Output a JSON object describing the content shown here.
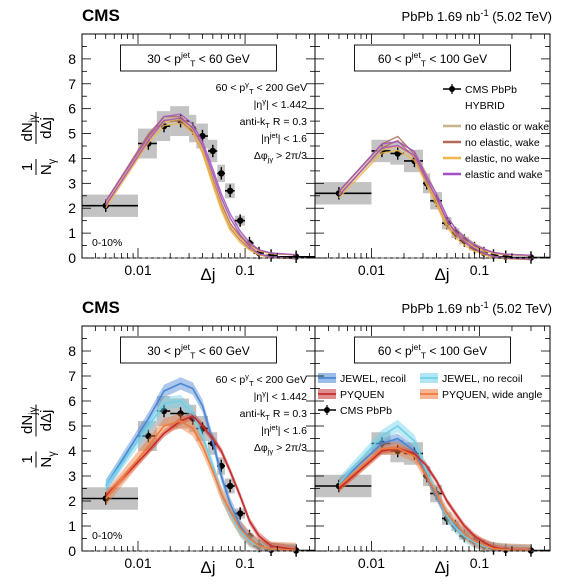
{
  "figure": {
    "cms_label": "CMS",
    "lumi_label": "PbPb 1.69 nb",
    "lumi_sup": "-1",
    "lumi_energy": "(5.02 TeV)"
  },
  "chart_data": {
    "type": "line",
    "xlabel": "Δj",
    "ylabel_numerator": "dN",
    "ylabel_numerator_sub": "jγ",
    "ylabel_denominator": "dΔj",
    "ylabel_prefactor": "1",
    "ylabel_prefactor_den": "N",
    "ylabel_prefactor_den_sub": "γ",
    "xscale": "log",
    "xlim": [
      0.003,
      0.45
    ],
    "ylim": [
      0,
      9
    ],
    "xticks": [
      {
        "v": 0.01,
        "label": "0.01"
      },
      {
        "v": 0.1,
        "label": "0.1"
      }
    ],
    "yticks": [
      0,
      1,
      2,
      3,
      4,
      5,
      6,
      7,
      8
    ],
    "centrality": "0-10%",
    "selection": [
      "60 < p_T^γ < 200 GeV",
      "|η^γ| < 1.442",
      "anti-k_T R = 0.3",
      "|η^jet| < 1.6",
      "Δφ_jγ > 2π/3"
    ],
    "bin_edges": [
      0.003,
      0.01,
      0.015,
      0.02,
      0.03,
      0.035,
      0.045,
      0.055,
      0.065,
      0.08,
      0.1,
      0.12,
      0.15,
      0.2,
      0.45
    ],
    "bin_centers": [
      0.005,
      0.0125,
      0.0175,
      0.025,
      0.0325,
      0.04,
      0.05,
      0.06,
      0.0725,
      0.09,
      0.11,
      0.135,
      0.175,
      0.3
    ],
    "panels": [
      {
        "row": "top",
        "col": "left",
        "jet_pt_range": "30 < p_T^jet < 60 GeV",
        "data": [
          2.1,
          4.6,
          5.3,
          5.5,
          5.2,
          4.9,
          4.3,
          3.4,
          2.7,
          1.5,
          0.6,
          0.2,
          0.1,
          0.05
        ],
        "syst": [
          0.45,
          0.6,
          0.6,
          0.6,
          0.55,
          0.5,
          0.45,
          0.35,
          0.3,
          0.2,
          0.1,
          0.05,
          0.03,
          0.03
        ],
        "series": [
          {
            "name": "no elastic or wake",
            "color": "#c8b48a",
            "values": [
              2.2,
              4.8,
              5.5,
              5.6,
              5.2,
              4.5,
              3.3,
              2.3,
              1.5,
              0.9,
              0.5,
              0.25,
              0.12,
              0.05
            ]
          },
          {
            "name": "no elastic, wake",
            "color": "#b06a5a",
            "values": [
              2.2,
              4.9,
              5.6,
              5.6,
              5.1,
              4.3,
              3.1,
              2.1,
              1.3,
              0.8,
              0.45,
              0.22,
              0.1,
              0.05
            ]
          },
          {
            "name": "elastic, no wake",
            "color": "#f0b74a",
            "values": [
              2.1,
              4.7,
              5.4,
              5.5,
              5.1,
              4.3,
              3.0,
              2.0,
              1.2,
              0.7,
              0.4,
              0.2,
              0.1,
              0.05
            ]
          },
          {
            "name": "elastic and wake",
            "color": "#a24fc4",
            "values": [
              2.2,
              4.8,
              5.6,
              5.7,
              5.3,
              4.6,
              3.5,
              2.5,
              1.7,
              1.0,
              0.55,
              0.25,
              0.12,
              0.05
            ]
          }
        ]
      },
      {
        "row": "top",
        "col": "right",
        "jet_pt_range": "60 < p_T^jet < 100 GeV",
        "data": [
          2.6,
          4.3,
          4.2,
          3.9,
          3.0,
          2.3,
          1.4,
          1.0,
          0.7,
          0.4,
          0.2,
          0.1,
          0.05,
          0.02
        ],
        "syst": [
          0.45,
          0.45,
          0.45,
          0.45,
          0.4,
          0.35,
          0.25,
          0.2,
          0.15,
          0.1,
          0.05,
          0.03,
          0.02,
          0.02
        ],
        "series": [
          {
            "name": "no elastic or wake",
            "color": "#c8b48a",
            "values": [
              2.6,
              4.4,
              4.6,
              4.2,
              3.3,
              2.5,
              1.6,
              1.1,
              0.8,
              0.5,
              0.3,
              0.15,
              0.08,
              0.03
            ]
          },
          {
            "name": "no elastic, wake",
            "color": "#b06a5a",
            "values": [
              2.6,
              4.5,
              4.8,
              4.1,
              3.1,
              2.3,
              1.4,
              1.0,
              0.7,
              0.4,
              0.25,
              0.12,
              0.06,
              0.02
            ]
          },
          {
            "name": "elastic, no wake",
            "color": "#f0b74a",
            "values": [
              2.5,
              4.3,
              4.4,
              4.0,
              3.0,
              2.2,
              1.3,
              0.9,
              0.6,
              0.35,
              0.2,
              0.1,
              0.05,
              0.02
            ]
          },
          {
            "name": "elastic and wake",
            "color": "#a24fc4",
            "values": [
              2.6,
              4.5,
              4.6,
              4.2,
              3.2,
              2.5,
              1.6,
              1.1,
              0.75,
              0.45,
              0.28,
              0.14,
              0.07,
              0.03
            ]
          }
        ],
        "legend": {
          "data_label": "CMS PbPb",
          "group_title": "HYBRID"
        }
      },
      {
        "row": "bottom",
        "col": "left",
        "jet_pt_range": "30 < p_T^jet < 60 GeV",
        "data": [
          2.1,
          4.6,
          5.6,
          5.5,
          5.3,
          4.9,
          4.3,
          3.4,
          2.6,
          1.5,
          0.6,
          0.2,
          0.05,
          0.02
        ],
        "syst": [
          0.45,
          0.6,
          0.6,
          0.6,
          0.55,
          0.5,
          0.45,
          0.35,
          0.3,
          0.2,
          0.1,
          0.05,
          0.03,
          0.03
        ],
        "series": [
          {
            "name": "JEWEL, recoil",
            "color": "#4a86d4",
            "band": 0.25,
            "values": [
              2.6,
              5.3,
              6.4,
              6.7,
              6.5,
              5.8,
              4.4,
              3.0,
              1.9,
              1.0,
              0.5,
              0.2,
              0.08,
              0.03
            ]
          },
          {
            "name": "JEWEL, no recoil",
            "color": "#6fd0e8",
            "band": 0.25,
            "values": [
              2.6,
              5.0,
              5.9,
              6.0,
              5.5,
              4.6,
              3.4,
              2.3,
              1.5,
              0.8,
              0.4,
              0.18,
              0.08,
              0.03
            ]
          },
          {
            "name": "PYQUEN",
            "color": "#c42d2d",
            "band": 0.15,
            "values": [
              2.2,
              4.0,
              4.7,
              5.2,
              5.4,
              5.0,
              4.5,
              4.0,
              3.2,
              2.2,
              1.2,
              0.6,
              0.2,
              0.05
            ]
          },
          {
            "name": "PYQUEN, wide angle",
            "color": "#f07a3a",
            "band": 0.3,
            "values": [
              2.1,
              4.2,
              5.0,
              5.2,
              4.9,
              4.2,
              3.2,
              2.3,
              1.6,
              0.9,
              0.5,
              0.2,
              0.08,
              0.03
            ]
          }
        ],
        "legend": {
          "data_label": "CMS PbPb"
        }
      },
      {
        "row": "bottom",
        "col": "right",
        "jet_pt_range": "60 < p_T^jet < 100 GeV",
        "data": [
          2.6,
          4.3,
          4.0,
          3.9,
          3.0,
          2.3,
          1.3,
          1.0,
          0.6,
          0.4,
          0.2,
          0.1,
          0.05,
          0.02
        ],
        "syst": [
          0.45,
          0.45,
          0.45,
          0.45,
          0.4,
          0.35,
          0.25,
          0.2,
          0.15,
          0.1,
          0.05,
          0.03,
          0.02,
          0.02
        ],
        "series": [
          {
            "name": "JEWEL, recoil",
            "color": "#4a86d4",
            "band": 0.2,
            "values": [
              2.7,
              4.3,
              4.5,
              4.0,
              3.0,
              2.2,
              1.4,
              1.0,
              0.7,
              0.4,
              0.25,
              0.12,
              0.06,
              0.02
            ]
          },
          {
            "name": "JEWEL, no recoil",
            "color": "#6fd0e8",
            "band": 0.25,
            "values": [
              2.7,
              4.6,
              5.0,
              4.4,
              3.2,
              2.3,
              1.4,
              0.95,
              0.6,
              0.35,
              0.2,
              0.1,
              0.05,
              0.02
            ]
          },
          {
            "name": "PYQUEN",
            "color": "#c42d2d",
            "band": 0.12,
            "values": [
              2.5,
              4.0,
              4.1,
              3.9,
              3.4,
              2.8,
              2.0,
              1.5,
              1.0,
              0.6,
              0.35,
              0.15,
              0.06,
              0.02
            ]
          },
          {
            "name": "PYQUEN, wide angle",
            "color": "#f07a3a",
            "band": 0.25,
            "values": [
              2.6,
              4.1,
              4.1,
              3.8,
              3.0,
              2.3,
              1.5,
              1.1,
              0.7,
              0.4,
              0.25,
              0.1,
              0.05,
              0.02
            ]
          }
        ]
      }
    ]
  }
}
